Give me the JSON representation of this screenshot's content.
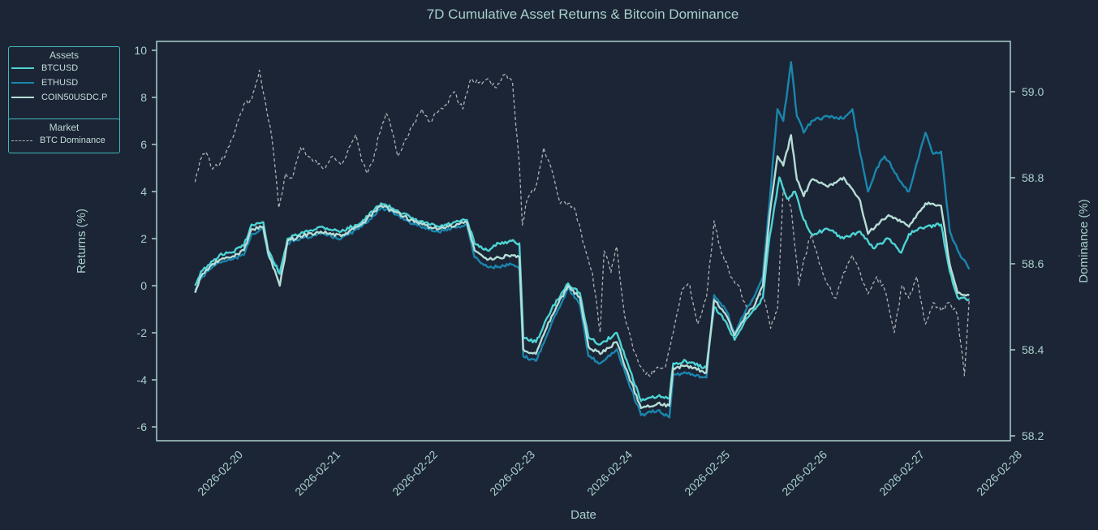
{
  "chart_data": {
    "type": "line",
    "title": "7D Cumulative Asset Returns & Bitcoin Dominance",
    "xlabel": "Date",
    "ylabel": "Returns (%)",
    "y2label": "Dominance (%)",
    "x_unit": "days since 2026-02-20 00:00",
    "x_ticks": [
      "2026-02-20",
      "2026-02-21",
      "2026-02-22",
      "2026-02-23",
      "2026-02-24",
      "2026-02-25",
      "2026-02-26",
      "2026-02-27",
      "2026-02-28"
    ],
    "y_ticks": [
      10,
      8,
      6,
      4,
      2,
      0,
      -2,
      -4,
      -6
    ],
    "y2_ticks": [
      "59.0",
      "58.8",
      "58.6",
      "58.4",
      "58.2"
    ],
    "xlim": [
      -0.88,
      8.0
    ],
    "ylim": [
      -6.6,
      10.4
    ],
    "y2lim": [
      58.187,
      59.116
    ],
    "grid": false,
    "legends": [
      {
        "title": "Assets",
        "placement": "left",
        "entries": [
          "BTCUSD",
          "ETHUSD",
          "COIN50USDC.P"
        ]
      },
      {
        "title": "Market",
        "placement": "left",
        "entries": [
          "BTC Dominance"
        ]
      }
    ],
    "series": [
      {
        "name": "BTCUSD",
        "axis": "left",
        "color": "#4dd4d4",
        "style": "solid",
        "x": [
          -0.48,
          -0.42,
          -0.33,
          -0.23,
          -0.11,
          0.02,
          0.1,
          0.22,
          0.27,
          0.39,
          0.47,
          0.6,
          0.81,
          1.02,
          1.23,
          1.43,
          1.6,
          1.77,
          2.02,
          2.31,
          2.39,
          2.52,
          2.64,
          2.77,
          2.85,
          2.89,
          3.02,
          3.18,
          3.35,
          3.47,
          3.56,
          3.68,
          3.85,
          3.97,
          4.1,
          4.27,
          4.39,
          4.43,
          4.56,
          4.77,
          4.85,
          4.98,
          5.06,
          5.18,
          5.27,
          5.35,
          5.42,
          5.52,
          5.6,
          5.68,
          5.77,
          5.85,
          6.02,
          6.18,
          6.35,
          6.48,
          6.56,
          6.64,
          6.77,
          6.85,
          7.02,
          7.18,
          7.27,
          7.35,
          7.47
        ],
        "y": [
          0.0,
          0.6,
          0.9,
          1.3,
          1.4,
          1.7,
          2.6,
          2.7,
          1.5,
          0.5,
          2.0,
          2.2,
          2.5,
          2.3,
          2.7,
          3.5,
          3.2,
          2.8,
          2.5,
          2.8,
          1.8,
          1.5,
          1.8,
          1.9,
          1.8,
          -2.2,
          -2.4,
          -1.0,
          0.1,
          -0.3,
          -2.2,
          -2.5,
          -2.0,
          -3.4,
          -4.9,
          -4.7,
          -4.8,
          -3.3,
          -3.2,
          -3.5,
          -0.9,
          -1.6,
          -2.3,
          -1.4,
          -1.0,
          -0.5,
          2.1,
          4.6,
          3.7,
          4.0,
          2.8,
          2.2,
          2.4,
          2.0,
          2.3,
          1.6,
          1.8,
          2.0,
          1.4,
          2.2,
          2.5,
          2.6,
          0.6,
          -0.5,
          -0.6
        ]
      },
      {
        "name": "ETHUSD",
        "axis": "left",
        "color": "#1a86ad",
        "style": "solid",
        "x": [
          -0.48,
          -0.42,
          -0.33,
          -0.23,
          -0.11,
          0.02,
          0.1,
          0.22,
          0.27,
          0.39,
          0.47,
          0.6,
          0.81,
          1.02,
          1.23,
          1.43,
          1.6,
          1.77,
          2.02,
          2.31,
          2.39,
          2.52,
          2.64,
          2.77,
          2.85,
          2.89,
          3.02,
          3.18,
          3.35,
          3.47,
          3.56,
          3.68,
          3.85,
          3.97,
          4.1,
          4.27,
          4.39,
          4.43,
          4.56,
          4.77,
          4.85,
          4.98,
          5.06,
          5.18,
          5.27,
          5.35,
          5.42,
          5.5,
          5.56,
          5.64,
          5.7,
          5.77,
          5.85,
          6.02,
          6.18,
          6.27,
          6.35,
          6.43,
          6.52,
          6.6,
          6.64,
          6.77,
          6.85,
          6.93,
          7.02,
          7.1,
          7.18,
          7.27,
          7.35,
          7.47
        ],
        "y": [
          -0.2,
          0.3,
          0.7,
          1.0,
          1.1,
          1.3,
          2.2,
          2.4,
          1.3,
          0.6,
          1.8,
          2.0,
          2.2,
          2.0,
          2.5,
          3.3,
          3.0,
          2.6,
          2.3,
          2.6,
          1.2,
          0.8,
          0.8,
          0.9,
          0.7,
          -3.0,
          -3.2,
          -1.6,
          -0.1,
          -0.8,
          -3.0,
          -3.3,
          -2.7,
          -4.1,
          -5.5,
          -5.3,
          -5.6,
          -3.8,
          -3.7,
          -3.9,
          -0.4,
          -1.1,
          -2.0,
          -1.0,
          -0.4,
          0.4,
          3.6,
          7.5,
          7.0,
          9.5,
          7.2,
          6.5,
          7.0,
          7.2,
          7.1,
          7.5,
          5.6,
          4.0,
          5.0,
          5.5,
          5.3,
          4.4,
          4.0,
          5.2,
          6.5,
          5.6,
          5.7,
          2.3,
          1.5,
          0.7
        ]
      },
      {
        "name": "COIN50USDC.P",
        "axis": "left",
        "color": "#b5ddd6",
        "style": "solid",
        "x": [
          -0.48,
          -0.42,
          -0.33,
          -0.23,
          -0.11,
          0.02,
          0.1,
          0.22,
          0.27,
          0.39,
          0.47,
          0.6,
          0.81,
          1.02,
          1.23,
          1.43,
          1.6,
          1.77,
          2.02,
          2.31,
          2.39,
          2.52,
          2.64,
          2.77,
          2.85,
          2.89,
          3.02,
          3.18,
          3.35,
          3.47,
          3.56,
          3.68,
          3.85,
          3.97,
          4.1,
          4.27,
          4.39,
          4.43,
          4.56,
          4.77,
          4.85,
          4.98,
          5.06,
          5.18,
          5.27,
          5.35,
          5.42,
          5.5,
          5.56,
          5.64,
          5.7,
          5.77,
          5.85,
          6.02,
          6.18,
          6.27,
          6.35,
          6.43,
          6.52,
          6.64,
          6.77,
          6.85,
          7.02,
          7.18,
          7.27,
          7.35,
          7.47
        ],
        "y": [
          -0.3,
          0.4,
          0.8,
          1.1,
          1.2,
          1.5,
          2.4,
          2.5,
          1.4,
          0.0,
          1.9,
          2.1,
          2.3,
          2.1,
          2.6,
          3.4,
          3.1,
          2.7,
          2.4,
          2.7,
          1.5,
          1.1,
          1.2,
          1.3,
          1.2,
          -2.7,
          -2.9,
          -1.3,
          0.0,
          -0.5,
          -2.6,
          -2.9,
          -2.4,
          -3.8,
          -5.2,
          -5.0,
          -5.1,
          -3.5,
          -3.4,
          -3.7,
          -0.6,
          -1.3,
          -2.1,
          -1.2,
          -0.8,
          0.0,
          3.0,
          5.5,
          5.1,
          6.4,
          4.5,
          3.8,
          4.5,
          4.2,
          4.6,
          4.1,
          3.6,
          2.2,
          2.6,
          3.0,
          2.7,
          2.5,
          3.5,
          3.4,
          0.9,
          -0.3,
          -0.4
        ]
      },
      {
        "name": "BTC Dominance",
        "axis": "right",
        "color": "#b0b0b5",
        "style": "dashed",
        "x": [
          -0.48,
          -0.43,
          -0.37,
          -0.3,
          -0.23,
          -0.16,
          -0.08,
          0.02,
          0.1,
          0.18,
          0.24,
          0.29,
          0.33,
          0.38,
          0.42,
          0.45,
          0.52,
          0.6,
          0.68,
          0.76,
          0.84,
          0.93,
          1.02,
          1.1,
          1.17,
          1.23,
          1.29,
          1.35,
          1.41,
          1.48,
          1.52,
          1.6,
          1.68,
          1.77,
          1.85,
          1.93,
          2.0,
          2.1,
          2.18,
          2.27,
          2.35,
          2.43,
          2.52,
          2.6,
          2.7,
          2.78,
          2.85,
          2.88,
          2.93,
          3.02,
          3.1,
          3.18,
          3.27,
          3.35,
          3.43,
          3.52,
          3.6,
          3.68,
          3.72,
          3.79,
          3.85,
          3.93,
          4.02,
          4.1,
          4.18,
          4.27,
          4.35,
          4.43,
          4.52,
          4.6,
          4.68,
          4.77,
          4.85,
          4.91,
          5.02,
          5.1,
          5.18,
          5.27,
          5.35,
          5.43,
          5.5,
          5.56,
          5.64,
          5.72,
          5.77,
          5.85,
          5.93,
          6.02,
          6.1,
          6.18,
          6.27,
          6.35,
          6.43,
          6.52,
          6.6,
          6.7,
          6.78,
          6.85,
          6.93,
          7.02,
          7.1,
          7.18,
          7.27,
          7.35,
          7.42,
          7.47
        ],
        "y": [
          58.79,
          58.84,
          58.86,
          58.82,
          58.83,
          58.86,
          58.9,
          58.97,
          58.98,
          59.05,
          58.98,
          58.92,
          58.85,
          58.73,
          58.77,
          58.81,
          58.8,
          58.87,
          58.85,
          58.84,
          58.82,
          58.85,
          58.83,
          58.87,
          58.9,
          58.84,
          58.81,
          58.84,
          58.9,
          58.95,
          58.93,
          58.85,
          58.89,
          58.93,
          58.96,
          58.93,
          58.95,
          58.97,
          59.0,
          58.96,
          59.03,
          59.02,
          59.03,
          59.01,
          59.04,
          59.02,
          58.83,
          58.69,
          58.75,
          58.78,
          58.87,
          58.82,
          58.74,
          58.74,
          58.72,
          58.64,
          58.58,
          58.44,
          58.63,
          58.58,
          58.64,
          58.48,
          58.4,
          58.36,
          58.34,
          58.36,
          58.36,
          58.44,
          58.54,
          58.55,
          58.46,
          58.52,
          58.7,
          58.64,
          58.57,
          58.55,
          58.5,
          58.52,
          58.53,
          58.45,
          58.49,
          58.78,
          58.73,
          58.55,
          58.61,
          58.67,
          58.6,
          58.55,
          58.52,
          58.58,
          58.62,
          58.58,
          58.53,
          58.57,
          58.54,
          58.44,
          58.55,
          58.52,
          58.57,
          58.46,
          58.51,
          58.49,
          58.51,
          58.48,
          58.34,
          58.52
        ]
      }
    ]
  }
}
